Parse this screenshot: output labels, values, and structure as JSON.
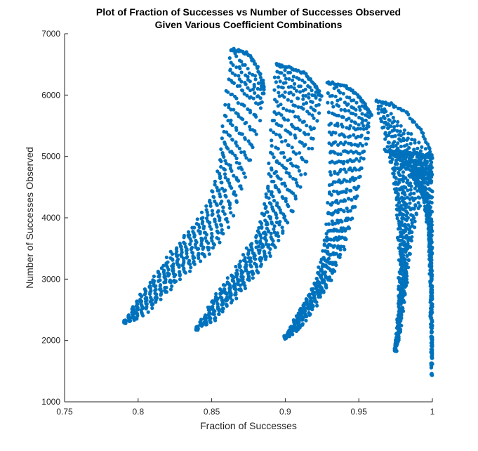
{
  "chart_data": {
    "type": "scatter",
    "title": [
      "Plot of Fraction of Successes vs Number of Successes Observed",
      "Given Various Coefficient Combinations"
    ],
    "xlabel": "Fraction of Successes",
    "ylabel": "Number of Successes Observed",
    "xlim": [
      0.75,
      1
    ],
    "ylim": [
      1000,
      7000
    ],
    "xticks": [
      0.75,
      0.8,
      0.85,
      0.9,
      0.95,
      1
    ],
    "xtick_labels": [
      "0.75",
      "0.8",
      "0.85",
      "0.9",
      "0.95",
      "1"
    ],
    "yticks": [
      1000,
      2000,
      3000,
      4000,
      5000,
      6000,
      7000
    ],
    "ytick_labels": [
      "1000",
      "2000",
      "3000",
      "4000",
      "5000",
      "6000",
      "7000"
    ],
    "grid": false,
    "marker_color": "#0072BD",
    "series": [
      {
        "clusters": [
          {
            "lower_edge": [
              [
                0.791,
                2300
              ],
              [
                0.8,
                2350
              ],
              [
                0.81,
                2550
              ],
              [
                0.82,
                2800
              ],
              [
                0.83,
                3050
              ],
              [
                0.84,
                3250
              ],
              [
                0.85,
                3450
              ],
              [
                0.86,
                3800
              ],
              [
                0.87,
                4400
              ],
              [
                0.878,
                5100
              ],
              [
                0.884,
                5800
              ],
              [
                0.886,
                6100
              ]
            ],
            "upper_edge": [
              [
                0.791,
                2300
              ],
              [
                0.8,
                2700
              ],
              [
                0.81,
                3000
              ],
              [
                0.82,
                3350
              ],
              [
                0.83,
                3650
              ],
              [
                0.84,
                3950
              ],
              [
                0.85,
                4350
              ],
              [
                0.855,
                4900
              ],
              [
                0.858,
                5500
              ],
              [
                0.861,
                6200
              ],
              [
                0.863,
                6750
              ]
            ],
            "top_arc": [
              [
                0.863,
                6750
              ],
              [
                0.868,
                6720
              ],
              [
                0.874,
                6680
              ],
              [
                0.879,
                6550
              ],
              [
                0.883,
                6350
              ],
              [
                0.886,
                6100
              ]
            ]
          },
          {
            "lower_edge": [
              [
                0.84,
                2200
              ],
              [
                0.85,
                2300
              ],
              [
                0.86,
                2550
              ],
              [
                0.87,
                2800
              ],
              [
                0.88,
                3100
              ],
              [
                0.89,
                3400
              ],
              [
                0.9,
                3800
              ],
              [
                0.91,
                4450
              ],
              [
                0.918,
                5150
              ],
              [
                0.922,
                5700
              ],
              [
                0.924,
                6000
              ]
            ],
            "upper_edge": [
              [
                0.84,
                2200
              ],
              [
                0.85,
                2650
              ],
              [
                0.86,
                2950
              ],
              [
                0.87,
                3300
              ],
              [
                0.88,
                3700
              ],
              [
                0.886,
                4200
              ],
              [
                0.889,
                4800
              ],
              [
                0.891,
                5500
              ],
              [
                0.893,
                6100
              ],
              [
                0.894,
                6500
              ]
            ],
            "top_arc": [
              [
                0.894,
                6500
              ],
              [
                0.9,
                6470
              ],
              [
                0.907,
                6420
              ],
              [
                0.913,
                6350
              ],
              [
                0.919,
                6200
              ],
              [
                0.924,
                6000
              ]
            ]
          },
          {
            "lower_edge": [
              [
                0.9,
                2050
              ],
              [
                0.91,
                2200
              ],
              [
                0.92,
                2550
              ],
              [
                0.93,
                2950
              ],
              [
                0.94,
                3500
              ],
              [
                0.948,
                4200
              ],
              [
                0.953,
                4900
              ],
              [
                0.956,
                5400
              ],
              [
                0.958,
                5700
              ]
            ],
            "upper_edge": [
              [
                0.9,
                2050
              ],
              [
                0.91,
                2500
              ],
              [
                0.92,
                2900
              ],
              [
                0.925,
                3300
              ],
              [
                0.928,
                3800
              ],
              [
                0.93,
                4600
              ],
              [
                0.93,
                5400
              ],
              [
                0.929,
                6200
              ]
            ],
            "top_arc": [
              [
                0.929,
                6200
              ],
              [
                0.936,
                6180
              ],
              [
                0.943,
                6120
              ],
              [
                0.949,
                6000
              ],
              [
                0.954,
                5850
              ],
              [
                0.958,
                5700
              ]
            ]
          },
          {
            "lower_edge": [
              [
                0.975,
                1850
              ],
              [
                0.978,
                2200
              ],
              [
                0.982,
                2900
              ],
              [
                0.985,
                3500
              ],
              [
                0.99,
                4100
              ],
              [
                0.995,
                4600
              ],
              [
                1.0,
                5000
              ]
            ],
            "upper_edge": [
              [
                0.975,
                1850
              ],
              [
                0.977,
                2400
              ],
              [
                0.978,
                3200
              ],
              [
                0.976,
                4200
              ],
              [
                0.972,
                4900
              ],
              [
                0.966,
                5500
              ],
              [
                0.962,
                5900
              ]
            ],
            "top_arc": [
              [
                0.962,
                5900
              ],
              [
                0.972,
                5850
              ],
              [
                0.983,
                5700
              ],
              [
                0.993,
                5400
              ],
              [
                1.0,
                5000
              ]
            ]
          },
          {
            "lower_edge": [
              [
                1.0,
                1450
              ],
              [
                1.0,
                2500
              ],
              [
                1.0,
                3600
              ],
              [
                1.0,
                4600
              ],
              [
                1.0,
                5000
              ]
            ],
            "upper_edge": [
              [
                1.0,
                1450
              ],
              [
                0.999,
                2800
              ],
              [
                0.998,
                3800
              ],
              [
                0.993,
                4400
              ],
              [
                0.985,
                4800
              ],
              [
                0.968,
                5100
              ]
            ],
            "top_arc": [
              [
                0.968,
                5100
              ],
              [
                0.98,
                5080
              ],
              [
                0.99,
                5030
              ],
              [
                1.0,
                5000
              ]
            ]
          }
        ]
      }
    ]
  }
}
